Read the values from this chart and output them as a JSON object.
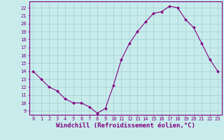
{
  "x": [
    0,
    1,
    2,
    3,
    4,
    5,
    6,
    7,
    8,
    9,
    10,
    11,
    12,
    13,
    14,
    15,
    16,
    17,
    18,
    19,
    20,
    21,
    22,
    23
  ],
  "y": [
    14,
    13,
    12,
    11.5,
    10.5,
    10,
    10,
    9.5,
    8.7,
    9.3,
    12.2,
    15.5,
    17.5,
    19,
    20.2,
    21.3,
    21.5,
    22.2,
    22.0,
    20.5,
    19.5,
    17.5,
    15.5,
    14
  ],
  "line_color": "#800080",
  "marker": "D",
  "marker_size": 2,
  "bg_color": "#c8ecec",
  "grid_color": "#a8d4d4",
  "xlabel": "Windchill (Refroidissement éolien,°C)",
  "xlabel_color": "#800080",
  "ylabel_ticks": [
    9,
    10,
    11,
    12,
    13,
    14,
    15,
    16,
    17,
    18,
    19,
    20,
    21,
    22
  ],
  "ylim": [
    8.5,
    22.8
  ],
  "xlim": [
    -0.5,
    23.5
  ],
  "xticks": [
    0,
    1,
    2,
    3,
    4,
    5,
    6,
    7,
    8,
    9,
    10,
    11,
    12,
    13,
    14,
    15,
    16,
    17,
    18,
    19,
    20,
    21,
    22,
    23
  ],
  "tick_color": "#800080",
  "tick_fontsize": 5.0,
  "xlabel_fontsize": 6.5,
  "axis_line_color": "#800080",
  "linewidth": 0.8
}
